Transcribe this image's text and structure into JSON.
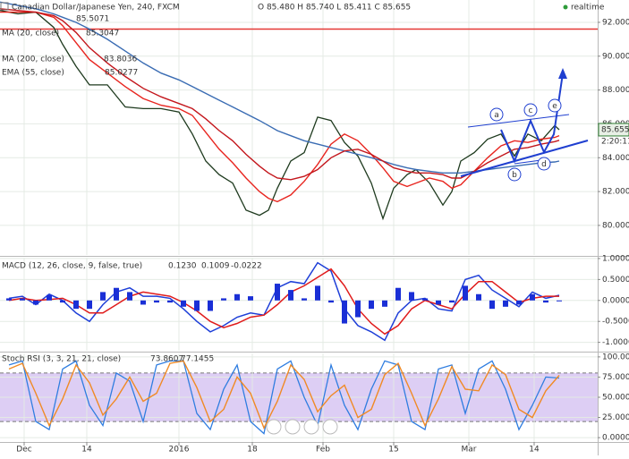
{
  "chart_data": [
    {
      "type": "line",
      "title": "Canadian Dollar/Japanese Yen, 240, FXCM",
      "subtitle": "O 85.480 H 85.740 L 85.411 C 85.655",
      "status": "realtime",
      "indicator_value": "85.5071",
      "indicator_color": "#2e9b3a",
      "last_value_label": "85.655",
      "countdown": "2:20:11",
      "hline": 91.6,
      "hline_color": "#e53935",
      "wave_labels": [
        "a",
        "b",
        "c",
        "d",
        "e"
      ],
      "x": [
        0,
        4,
        8,
        12,
        14,
        17,
        20,
        24,
        28,
        32,
        36,
        40,
        43,
        46,
        49,
        52,
        55,
        58,
        60,
        62,
        65,
        68,
        71,
        74,
        77,
        80,
        83,
        85.6,
        88,
        91,
        93,
        96,
        99,
        101,
        103,
        106,
        109,
        112,
        115,
        118,
        121,
        124,
        125
      ],
      "xlim": [
        0,
        133.6
      ],
      "ylim": [
        78.25,
        93.32
      ],
      "yticks": [
        {
          "value": 80,
          "label": "80.000"
        },
        {
          "value": 82,
          "label": "82.000"
        },
        {
          "value": 84,
          "label": "84.000"
        },
        {
          "value": 86,
          "label": "86.000"
        },
        {
          "value": 88,
          "label": "88.000"
        },
        {
          "value": 90,
          "label": "90.000"
        },
        {
          "value": 92,
          "label": "92.000"
        }
      ],
      "series": [
        {
          "color": "#1e3a1e",
          "values": [
            92.7,
            92.5,
            92.6,
            91.7,
            90.7,
            89.4,
            88.3,
            88.3,
            87.0,
            86.9,
            86.9,
            86.7,
            85.4,
            83.8,
            83.0,
            82.5,
            80.9,
            80.6,
            80.9,
            82.2,
            83.8,
            84.3,
            86.4,
            86.2,
            84.9,
            84.1,
            82.5,
            80.4,
            82.2,
            83.0,
            83.3,
            82.5,
            81.2,
            82.0,
            83.8,
            84.3,
            85.1,
            85.4,
            84.1,
            85.4,
            85.0,
            85.9,
            85.655
          ]
        },
        {
          "name": "MA (20, close)",
          "value_label": "85.3047",
          "color": "#e8251f",
          "values": [
            92.6,
            92.6,
            92.6,
            92.3,
            91.8,
            90.8,
            89.8,
            89.0,
            88.2,
            87.5,
            87.1,
            86.9,
            86.5,
            85.5,
            84.5,
            83.7,
            82.8,
            82.0,
            81.6,
            81.4,
            81.8,
            82.6,
            83.6,
            84.8,
            85.4,
            85.0,
            84.2,
            83.4,
            82.6,
            82.3,
            82.5,
            82.8,
            82.6,
            82.2,
            82.4,
            83.2,
            84.0,
            84.7,
            85.0,
            84.9,
            85.1,
            85.2,
            85.3047
          ]
        },
        {
          "name": "MA (200, close)",
          "value_label": "83.8036",
          "color": "#3a6cb3",
          "values": [
            93.2,
            93.0,
            92.8,
            92.5,
            92.3,
            92.0,
            91.6,
            91.0,
            90.3,
            89.6,
            89.0,
            88.6,
            88.2,
            87.8,
            87.4,
            87.0,
            86.6,
            86.2,
            85.9,
            85.6,
            85.3,
            85.0,
            84.8,
            84.6,
            84.4,
            84.2,
            84.0,
            83.8,
            83.6,
            83.4,
            83.3,
            83.2,
            83.1,
            83.1,
            83.1,
            83.2,
            83.3,
            83.4,
            83.5,
            83.6,
            83.7,
            83.75,
            83.8036
          ]
        },
        {
          "name": "EMA (55, close)",
          "value_label": "85.0277",
          "color": "#c3161c",
          "values": [
            92.8,
            92.7,
            92.6,
            92.4,
            92.1,
            91.4,
            90.5,
            89.6,
            88.8,
            88.1,
            87.6,
            87.2,
            86.9,
            86.3,
            85.6,
            85.0,
            84.2,
            83.5,
            83.1,
            82.8,
            82.7,
            82.9,
            83.3,
            84.0,
            84.4,
            84.5,
            84.2,
            83.8,
            83.4,
            83.2,
            83.1,
            83.1,
            83.0,
            82.8,
            82.8,
            83.2,
            83.7,
            84.1,
            84.5,
            84.6,
            84.8,
            84.95,
            85.0277
          ]
        }
      ]
    },
    {
      "type": "combo",
      "title": "MACD (12, 26, close, 9, false, true)",
      "x": [
        2,
        5,
        8,
        11,
        14,
        17,
        20,
        23,
        26,
        29,
        32,
        35,
        38,
        41,
        44,
        47,
        50,
        53,
        56,
        59,
        62,
        65,
        68,
        71,
        74,
        77,
        80,
        83,
        86,
        89,
        92,
        95,
        98,
        101,
        104,
        107,
        110,
        113,
        116,
        119,
        122,
        125
      ],
      "xlim": [
        0,
        133.6
      ],
      "ylim": [
        -1.2,
        1.02
      ],
      "yticks": [
        {
          "value": 1,
          "label": "1.0000"
        },
        {
          "value": 0.5,
          "label": "0.5000"
        },
        {
          "value": 0,
          "label": "0.0000"
        },
        {
          "value": -0.5,
          "label": "-0.5000"
        },
        {
          "value": -1,
          "label": "-1.0000"
        }
      ],
      "series": [
        {
          "type": "line",
          "value_label": "0.1230",
          "color": "#1e3fd8",
          "values": [
            0.05,
            0.1,
            -0.1,
            0.15,
            0.0,
            -0.3,
            -0.5,
            -0.1,
            0.2,
            0.3,
            0.1,
            0.1,
            0.05,
            -0.2,
            -0.5,
            -0.75,
            -0.6,
            -0.4,
            -0.3,
            -0.35,
            0.3,
            0.45,
            0.4,
            0.9,
            0.7,
            -0.2,
            -0.6,
            -0.75,
            -0.95,
            -0.3,
            0.0,
            0.05,
            -0.2,
            -0.25,
            0.5,
            0.6,
            0.25,
            0.05,
            -0.15,
            0.2,
            0.05,
            0.123
          ]
        },
        {
          "type": "line",
          "value_label": "0.1009",
          "color": "#e01b1b",
          "values": [
            0.0,
            0.05,
            0.0,
            0.02,
            0.05,
            -0.1,
            -0.3,
            -0.3,
            -0.1,
            0.1,
            0.2,
            0.15,
            0.1,
            -0.05,
            -0.25,
            -0.5,
            -0.65,
            -0.55,
            -0.4,
            -0.35,
            -0.1,
            0.2,
            0.35,
            0.55,
            0.75,
            0.35,
            -0.2,
            -0.55,
            -0.8,
            -0.6,
            -0.2,
            0.0,
            -0.1,
            -0.2,
            0.15,
            0.45,
            0.45,
            0.2,
            -0.05,
            0.05,
            0.1,
            0.1009
          ]
        },
        {
          "type": "bar",
          "value_label": "-0.0222",
          "color": "#1a2fd6",
          "values": [
            0.05,
            0.05,
            -0.1,
            0.13,
            -0.05,
            -0.2,
            -0.2,
            0.2,
            0.3,
            0.2,
            -0.1,
            -0.05,
            -0.05,
            -0.15,
            -0.25,
            -0.25,
            0.05,
            0.15,
            0.1,
            0.0,
            0.4,
            0.25,
            0.05,
            0.35,
            -0.05,
            -0.55,
            -0.4,
            -0.2,
            -0.15,
            0.3,
            0.2,
            0.05,
            -0.1,
            -0.05,
            0.35,
            0.15,
            -0.2,
            -0.15,
            -0.1,
            0.15,
            -0.05,
            -0.0222
          ]
        }
      ]
    },
    {
      "type": "line",
      "title": "Stoch RSI (3, 3, 21, 21, close)",
      "x": [
        2,
        5,
        8,
        11,
        14,
        17,
        20,
        23,
        26,
        29,
        32,
        35,
        38,
        41,
        44,
        47,
        50,
        53,
        56,
        59,
        62,
        65,
        68,
        71,
        74,
        77,
        80,
        83,
        86,
        89,
        92,
        95,
        98,
        101,
        104,
        107,
        110,
        113,
        116,
        119,
        122,
        125
      ],
      "xlim": [
        0,
        133.6
      ],
      "xticks": [
        {
          "value": 5.4,
          "label": "Dec"
        },
        {
          "value": 19.4,
          "label": "14"
        },
        {
          "value": 40,
          "label": "2016"
        },
        {
          "value": 56.4,
          "label": "18"
        },
        {
          "value": 72.2,
          "label": "Feb"
        },
        {
          "value": 88,
          "label": "15"
        },
        {
          "value": 104.8,
          "label": "Mar"
        },
        {
          "value": 119.4,
          "label": "14"
        }
      ],
      "ylim": [
        -5.4,
        104.3
      ],
      "yticks": [
        {
          "value": 100,
          "label": "100.0000"
        },
        {
          "value": 75,
          "label": "75.0000"
        },
        {
          "value": 50,
          "label": "50.0000"
        },
        {
          "value": 25,
          "label": "25.0000"
        },
        {
          "value": 0,
          "label": "0.0000"
        }
      ],
      "band": [
        20,
        80
      ],
      "band_color": "#d2bdf0",
      "series": [
        {
          "value_label": "73.8607",
          "color": "#2f7de0",
          "values": [
            90,
            95,
            20,
            10,
            85,
            95,
            40,
            15,
            80,
            70,
            20,
            90,
            95,
            95,
            30,
            10,
            60,
            90,
            20,
            5,
            85,
            95,
            50,
            15,
            90,
            40,
            10,
            60,
            95,
            90,
            20,
            10,
            85,
            90,
            30,
            85,
            95,
            60,
            10,
            40,
            75,
            73.8607
          ]
        },
        {
          "value_label": "77.1455",
          "color": "#f08a24",
          "values": [
            85,
            92,
            55,
            15,
            48,
            90,
            68,
            28,
            48,
            75,
            45,
            55,
            92,
            95,
            62,
            20,
            35,
            75,
            55,
            12,
            45,
            90,
            72,
            32,
            52,
            65,
            25,
            35,
            78,
            92,
            55,
            15,
            48,
            88,
            60,
            58,
            90,
            78,
            35,
            25,
            58,
            77.1455
          ]
        }
      ]
    }
  ]
}
